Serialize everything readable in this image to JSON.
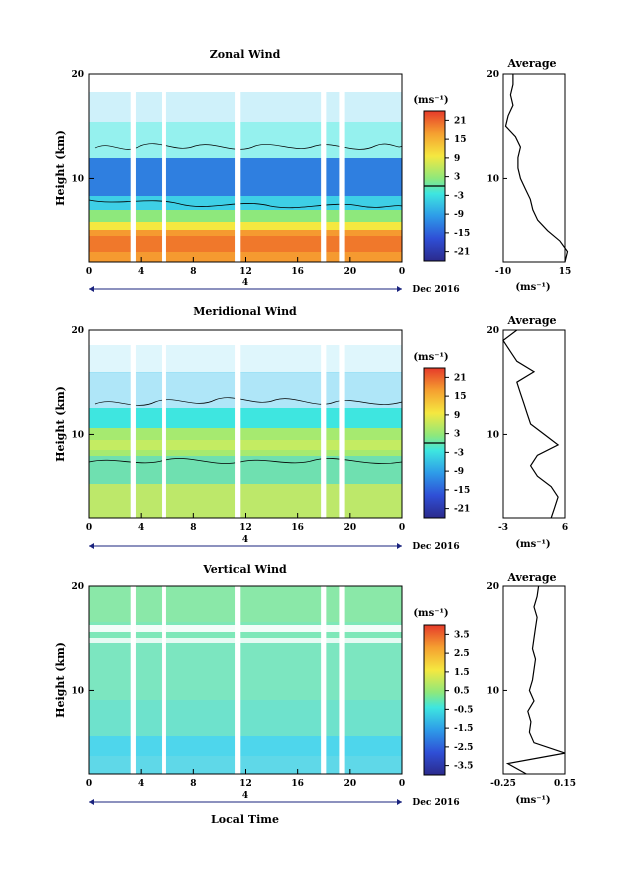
{
  "figure": {
    "xlabel": "Local Time",
    "date_label": "Dec 2016"
  },
  "chart_data": [
    {
      "type": "heatmap",
      "id": "zonal",
      "title": "Zonal Wind",
      "ylabel": "Height (km)",
      "units": "(ms⁻¹)",
      "x_ticks": [
        "0",
        "4",
        "8",
        "12",
        "16",
        "20",
        "0"
      ],
      "x_range_hours": [
        0,
        24
      ],
      "y_ticks": [
        "20",
        "10"
      ],
      "y_range_km": [
        2,
        20
      ],
      "date_axis_label": "4",
      "colorbar_ticks": [
        "21",
        "15",
        "9",
        "3",
        "-3",
        "-9",
        "-15",
        "-21"
      ],
      "colorbar_range": [
        -24,
        24
      ],
      "data_gaps_hours": [
        [
          3.2,
          3.6
        ],
        [
          5.6,
          5.9
        ],
        [
          11.2,
          11.6
        ],
        [
          17.8,
          18.2
        ],
        [
          19.2,
          19.6
        ]
      ],
      "profile_km_value": [
        [
          2,
          15
        ],
        [
          3,
          16
        ],
        [
          4,
          13
        ],
        [
          5,
          8
        ],
        [
          6,
          4
        ],
        [
          7,
          2
        ],
        [
          8,
          1
        ],
        [
          9,
          -1
        ],
        [
          10,
          -3
        ],
        [
          11,
          -4
        ],
        [
          12,
          -4
        ],
        [
          13,
          -3
        ],
        [
          14,
          -5
        ],
        [
          15,
          -9
        ],
        [
          16,
          -8
        ],
        [
          17,
          -6
        ],
        [
          18,
          -7
        ],
        [
          19,
          -6
        ],
        [
          20,
          -6
        ]
      ],
      "average": {
        "title": "Average",
        "x_ticks": [
          "-10",
          "15"
        ],
        "xlim": [
          -10,
          15
        ],
        "y_ticks": [
          "20",
          "10"
        ],
        "xlabel": "(ms⁻¹)"
      }
    },
    {
      "type": "heatmap",
      "id": "meridional",
      "title": "Meridional Wind",
      "ylabel": "Height (km)",
      "units": "(ms⁻¹)",
      "x_ticks": [
        "0",
        "4",
        "8",
        "12",
        "16",
        "20",
        "0"
      ],
      "x_range_hours": [
        0,
        24
      ],
      "y_ticks": [
        "20",
        "10"
      ],
      "y_range_km": [
        2,
        20
      ],
      "date_axis_label": "4",
      "colorbar_ticks": [
        "21",
        "15",
        "9",
        "3",
        "-3",
        "-9",
        "-15",
        "-21"
      ],
      "colorbar_range": [
        -24,
        24
      ],
      "data_gaps_hours": [
        [
          3.2,
          3.6
        ],
        [
          5.6,
          5.9
        ],
        [
          11.2,
          11.6
        ],
        [
          17.8,
          18.2
        ],
        [
          19.2,
          19.6
        ]
      ],
      "profile_km_value": [
        [
          2,
          4
        ],
        [
          3,
          4.5
        ],
        [
          4,
          5
        ],
        [
          5,
          4
        ],
        [
          6,
          2
        ],
        [
          7,
          1
        ],
        [
          8,
          2
        ],
        [
          9,
          5
        ],
        [
          10,
          3
        ],
        [
          11,
          1
        ],
        [
          12,
          0.5
        ],
        [
          13,
          0
        ],
        [
          14,
          -0.5
        ],
        [
          15,
          -1
        ],
        [
          16,
          1.5
        ],
        [
          17,
          -1
        ],
        [
          18,
          -2
        ],
        [
          19,
          -3
        ],
        [
          20,
          -1
        ]
      ],
      "average": {
        "title": "Average",
        "x_ticks": [
          "-3",
          "6"
        ],
        "xlim": [
          -3,
          6
        ],
        "y_ticks": [
          "20",
          "10"
        ],
        "xlabel": "(ms⁻¹)"
      }
    },
    {
      "type": "heatmap",
      "id": "vertical",
      "title": "Vertical Wind",
      "ylabel": "Height (km)",
      "units": "(ms⁻¹)",
      "x_ticks": [
        "0",
        "4",
        "8",
        "12",
        "16",
        "20",
        "0"
      ],
      "x_range_hours": [
        0,
        24
      ],
      "y_ticks": [
        "20",
        "10"
      ],
      "y_range_km": [
        2,
        20
      ],
      "date_axis_label": "4",
      "colorbar_ticks": [
        "3.5",
        "2.5",
        "1.5",
        "0.5",
        "-0.5",
        "-1.5",
        "-2.5",
        "-3.5"
      ],
      "colorbar_range": [
        -4,
        4
      ],
      "data_gaps_hours": [
        [
          3.2,
          3.6
        ],
        [
          5.6,
          5.9
        ],
        [
          11.2,
          11.6
        ],
        [
          17.8,
          18.2
        ],
        [
          19.2,
          19.6
        ]
      ],
      "profile_km_value": [
        [
          2,
          -0.1
        ],
        [
          3,
          -0.22
        ],
        [
          4,
          0.15
        ],
        [
          5,
          -0.05
        ],
        [
          6,
          -0.08
        ],
        [
          7,
          -0.07
        ],
        [
          8,
          -0.09
        ],
        [
          9,
          -0.05
        ],
        [
          10,
          -0.08
        ],
        [
          11,
          -0.06
        ],
        [
          12,
          -0.05
        ],
        [
          13,
          -0.04
        ],
        [
          14,
          -0.06
        ],
        [
          15,
          -0.05
        ],
        [
          16,
          -0.04
        ],
        [
          17,
          -0.03
        ],
        [
          18,
          -0.05
        ],
        [
          19,
          -0.03
        ],
        [
          20,
          -0.02
        ]
      ],
      "average": {
        "title": "Average",
        "x_ticks": [
          "-0.25",
          "0.15"
        ],
        "xlim": [
          -0.25,
          0.15
        ],
        "y_ticks": [
          "20",
          "10"
        ],
        "xlabel": "(ms⁻¹)"
      }
    }
  ]
}
